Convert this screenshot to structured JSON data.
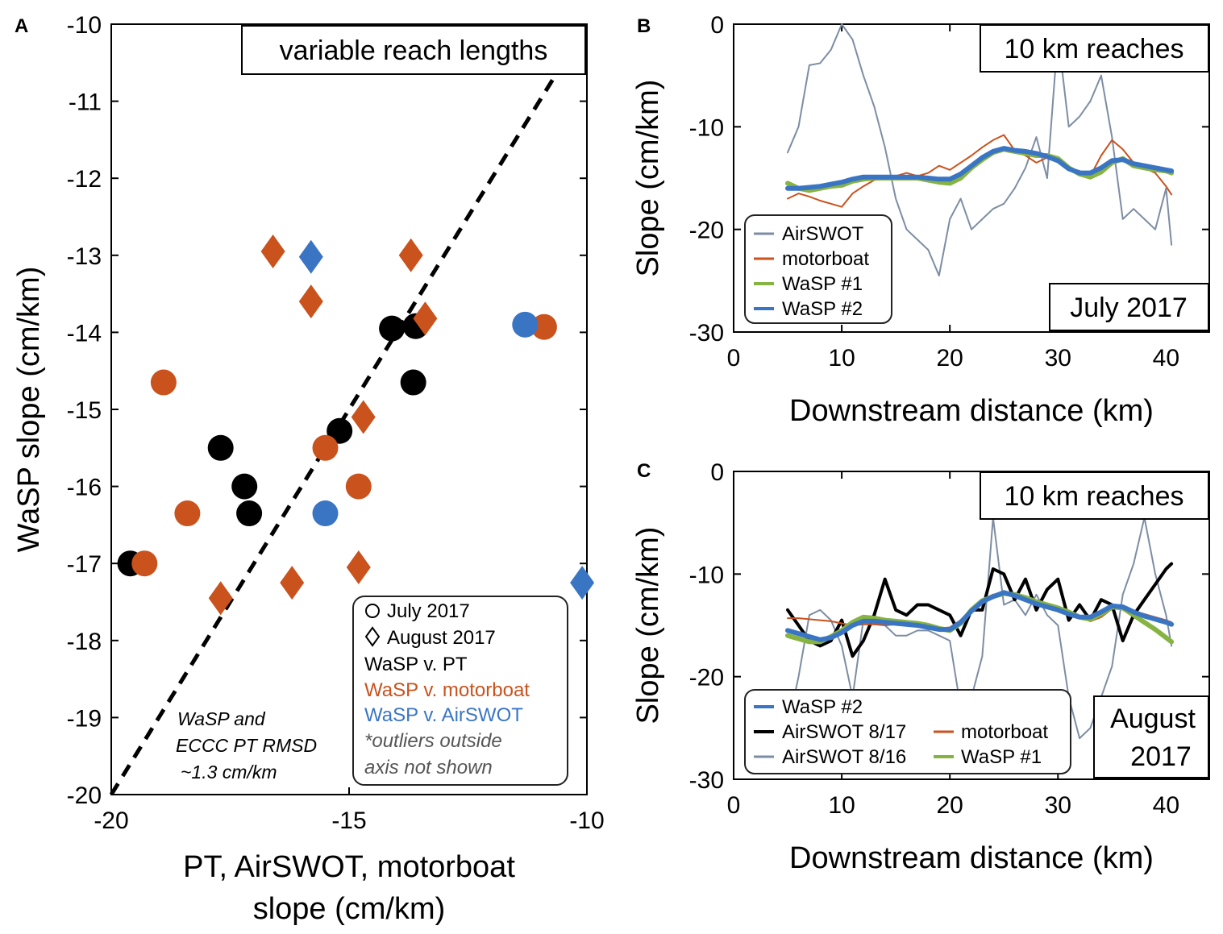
{
  "colors": {
    "black": "#000000",
    "orange": "#c9521d",
    "blue": "#3a75c4",
    "green": "#86b342",
    "grey": "#7d8da3"
  },
  "panel_a": {
    "label": "A",
    "title_box": "variable reach lengths",
    "xlabel_line1": "PT, AirSWOT, motorboat",
    "xlabel_line2": "slope (cm/km)",
    "ylabel": "WaSP slope (cm/km)",
    "xticks": [
      "-20",
      "-15",
      "-10"
    ],
    "yticks": [
      "-10",
      "-11",
      "-12",
      "-13",
      "-14",
      "-15",
      "-16",
      "-17",
      "-18",
      "-19",
      "-20"
    ],
    "note_line1": "WaSP and",
    "note_line2": "ECCC PT RMSD",
    "note_line3": "~1.3 cm/km",
    "legend": {
      "circle_label": "July 2017",
      "diamond_label": "August 2017",
      "pt_label": "WaSP v. PT",
      "motorboat_label": "WaSP v. motorboat",
      "airswot_label": "WaSP v. AirSWOT",
      "outlier_line1": "*outliers outside",
      "outlier_line2": "axis not shown"
    }
  },
  "panel_b": {
    "label": "B",
    "title_box": "10 km reaches",
    "date_box": "July 2017",
    "xlabel": "Downstream distance (km)",
    "ylabel": "Slope (cm/km)",
    "xticks": [
      "0",
      "10",
      "20",
      "30",
      "40"
    ],
    "yticks": [
      "0",
      "-10",
      "-20",
      "-30"
    ],
    "legend": [
      "AirSWOT",
      "motorboat",
      "WaSP #1",
      "WaSP #2"
    ]
  },
  "panel_c": {
    "label": "C",
    "title_box": "10 km reaches",
    "date_line1": "August",
    "date_line2": "2017",
    "xlabel": "Downstream distance (km)",
    "ylabel": "Slope (cm/km)",
    "xticks": [
      "0",
      "10",
      "20",
      "30",
      "40"
    ],
    "yticks": [
      "0",
      "-10",
      "-20",
      "-30"
    ],
    "legend": [
      "WaSP #2",
      "AirSWOT 8/17",
      "motorboat",
      "AirSWOT 8/16",
      "WaSP #1"
    ]
  },
  "chart_data": [
    {
      "type": "scatter",
      "panel": "A",
      "title": "variable reach lengths",
      "xlabel": "PT, AirSWOT, motorboat slope (cm/km)",
      "ylabel": "WaSP slope (cm/km)",
      "xlim": [
        -20,
        -10
      ],
      "ylim": [
        -20,
        -10
      ],
      "reference_line": "1:1 dashed",
      "series": [
        {
          "name": "WaSP v. PT (July 2017)",
          "marker": "circle",
          "color": "black",
          "points": [
            [
              -19.6,
              -17.0
            ],
            [
              -17.7,
              -15.5
            ],
            [
              -17.2,
              -16.0
            ],
            [
              -17.1,
              -16.35
            ],
            [
              -15.2,
              -15.28
            ],
            [
              -14.1,
              -13.95
            ],
            [
              -13.6,
              -13.92
            ],
            [
              -13.65,
              -14.65
            ]
          ]
        },
        {
          "name": "WaSP v. motorboat (July 2017)",
          "marker": "circle",
          "color": "orange",
          "points": [
            [
              -19.3,
              -17.0
            ],
            [
              -18.9,
              -14.65
            ],
            [
              -18.4,
              -16.35
            ],
            [
              -15.5,
              -15.5
            ],
            [
              -14.8,
              -16.0
            ],
            [
              -10.9,
              -13.93
            ]
          ]
        },
        {
          "name": "WaSP v. AirSWOT (July 2017)",
          "marker": "circle",
          "color": "blue",
          "points": [
            [
              -15.5,
              -16.35
            ],
            [
              -11.3,
              -13.9
            ]
          ]
        },
        {
          "name": "WaSP v. motorboat (August 2017)",
          "marker": "diamond",
          "color": "orange",
          "points": [
            [
              -16.6,
              -12.95
            ],
            [
              -15.8,
              -13.6
            ],
            [
              -13.7,
              -13.0
            ],
            [
              -13.4,
              -13.82
            ],
            [
              -14.7,
              -15.1
            ],
            [
              -14.8,
              -17.05
            ],
            [
              -16.2,
              -17.25
            ],
            [
              -17.7,
              -17.45
            ]
          ]
        },
        {
          "name": "WaSP v. AirSWOT (August 2017)",
          "marker": "diamond",
          "color": "blue",
          "points": [
            [
              -15.8,
              -13.02
            ],
            [
              -10.1,
              -17.25
            ]
          ]
        }
      ]
    },
    {
      "type": "line",
      "panel": "B",
      "title": "10 km reaches",
      "subtitle": "July 2017",
      "xlabel": "Downstream distance (km)",
      "ylabel": "Slope (cm/km)",
      "xlim": [
        0,
        44
      ],
      "ylim": [
        -30,
        0
      ],
      "series": [
        {
          "name": "AirSWOT",
          "color": "grey",
          "width": 2,
          "x": [
            5,
            6,
            7,
            8,
            9,
            10,
            11,
            12,
            13,
            14,
            15,
            16,
            17,
            18,
            19,
            20,
            21,
            22,
            23,
            24,
            25,
            26,
            27,
            28,
            29,
            30,
            31,
            32,
            33,
            34,
            35,
            36,
            37,
            38,
            39,
            40,
            40.5
          ],
          "y": [
            -12.5,
            -10,
            -4,
            -3.8,
            -2.5,
            0,
            -1.5,
            -5,
            -8,
            -12,
            -17,
            -20,
            -21,
            -22,
            -24.5,
            -19,
            -17,
            -20,
            -19,
            -18,
            -17.5,
            -16,
            -14,
            -11,
            -15,
            -1,
            -10,
            -9,
            -7.5,
            -5,
            -11,
            -19,
            -18,
            -19,
            -20,
            -16,
            -21.5
          ]
        },
        {
          "name": "motorboat",
          "color": "orange",
          "width": 2,
          "x": [
            5,
            6,
            7,
            8,
            9,
            10,
            11,
            12,
            13,
            14,
            15,
            16,
            17,
            18,
            19,
            20,
            21,
            22,
            23,
            24,
            25,
            26,
            27,
            28,
            29,
            30,
            31,
            32,
            33,
            34,
            35,
            36,
            37,
            38,
            39,
            40,
            40.5
          ],
          "y": [
            -17,
            -16.5,
            -16.8,
            -17.2,
            -17.5,
            -17.8,
            -16.5,
            -15.8,
            -15.2,
            -15,
            -14.8,
            -14.5,
            -14.8,
            -14.5,
            -13.8,
            -14.2,
            -13.5,
            -12.8,
            -12,
            -11.3,
            -10.8,
            -12.3,
            -12.8,
            -13.5,
            -13,
            -13.2,
            -14,
            -14.3,
            -14.8,
            -12.8,
            -11.3,
            -12.2,
            -13.5,
            -14,
            -14.5,
            -15.8,
            -16.6
          ]
        },
        {
          "name": "WaSP #1",
          "color": "green",
          "width": 6,
          "x": [
            5,
            6,
            7,
            8,
            9,
            10,
            11,
            12,
            13,
            14,
            15,
            16,
            17,
            18,
            19,
            20,
            21,
            22,
            23,
            24,
            25,
            26,
            27,
            28,
            29,
            30,
            31,
            32,
            33,
            34,
            35,
            36,
            37,
            38,
            39,
            40,
            40.5
          ],
          "y": [
            -15.5,
            -16,
            -16.2,
            -16,
            -15.8,
            -15.7,
            -15.3,
            -15.1,
            -15,
            -15,
            -15,
            -15,
            -15,
            -15.2,
            -15.4,
            -15.5,
            -15,
            -14,
            -13.2,
            -12.5,
            -12.2,
            -12.4,
            -12.6,
            -12.8,
            -12.8,
            -13.1,
            -14,
            -14.6,
            -14.9,
            -14.4,
            -13.5,
            -13.1,
            -13.8,
            -14,
            -14.2,
            -14.3,
            -14.5
          ]
        },
        {
          "name": "WaSP #2",
          "color": "blue",
          "width": 6,
          "x": [
            5,
            6,
            7,
            8,
            9,
            10,
            11,
            12,
            13,
            14,
            15,
            16,
            17,
            18,
            19,
            20,
            21,
            22,
            23,
            24,
            25,
            26,
            27,
            28,
            29,
            30,
            31,
            32,
            33,
            34,
            35,
            36,
            37,
            38,
            39,
            40,
            40.5
          ],
          "y": [
            -16,
            -16,
            -15.9,
            -15.8,
            -15.6,
            -15.4,
            -15.1,
            -14.9,
            -14.9,
            -14.9,
            -14.9,
            -14.9,
            -14.9,
            -15,
            -15.1,
            -15.1,
            -14.6,
            -13.8,
            -13,
            -12.4,
            -12.1,
            -12.3,
            -12.4,
            -12.6,
            -12.9,
            -13.3,
            -14.1,
            -14.5,
            -14.5,
            -14,
            -13.3,
            -13.2,
            -13.6,
            -13.8,
            -14,
            -14.2,
            -14.3
          ]
        }
      ]
    },
    {
      "type": "line",
      "panel": "C",
      "title": "10 km reaches",
      "subtitle": "August 2017",
      "xlabel": "Downstream distance (km)",
      "ylabel": "Slope (cm/km)",
      "xlim": [
        0,
        44
      ],
      "ylim": [
        -30,
        0
      ],
      "series": [
        {
          "name": "AirSWOT 8/16",
          "color": "grey",
          "width": 2,
          "x": [
            5,
            6,
            7,
            8,
            9,
            10,
            11,
            12,
            13,
            14,
            15,
            16,
            17,
            18,
            19,
            20,
            21,
            22,
            23,
            24,
            25,
            26,
            27,
            28,
            29,
            30,
            31,
            32,
            33,
            34,
            35,
            36,
            37,
            38,
            39,
            40,
            40.5
          ],
          "y": [
            -25,
            -20,
            -14,
            -13.5,
            -14.5,
            -17,
            -22,
            -14.5,
            -14,
            -15,
            -16,
            -16,
            -15.5,
            -15.5,
            -16,
            -16.5,
            -23,
            -22,
            -18,
            -4.5,
            -13,
            -12.5,
            -14,
            -12,
            -14,
            -15,
            -22,
            -26,
            -25,
            -22,
            -19,
            -12,
            -9,
            -4.5,
            -10,
            -14,
            -17
          ]
        },
        {
          "name": "AirSWOT 8/17",
          "color": "black",
          "width": 4,
          "x": [
            5,
            6,
            7,
            8,
            9,
            10,
            11,
            12,
            13,
            14,
            15,
            16,
            17,
            18,
            19,
            20,
            21,
            22,
            23,
            24,
            25,
            26,
            27,
            28,
            29,
            30,
            31,
            32,
            33,
            34,
            35,
            36,
            37,
            38,
            39,
            40,
            40.5
          ],
          "y": [
            -13.5,
            -15,
            -16.5,
            -17,
            -16.5,
            -14.5,
            -18,
            -16.5,
            -14,
            -10.5,
            -13.5,
            -14,
            -13,
            -13,
            -13.5,
            -14,
            -16,
            -13.5,
            -13.5,
            -9.5,
            -10,
            -12.5,
            -10.5,
            -13.5,
            -11.5,
            -10.5,
            -14.5,
            -13,
            -14.5,
            -12.5,
            -13,
            -16.5,
            -14,
            -12.5,
            -11,
            -9.5,
            -9
          ]
        },
        {
          "name": "motorboat",
          "color": "orange",
          "width": 2,
          "x": [
            5,
            6,
            7,
            8,
            9,
            10,
            11,
            12,
            13,
            14,
            15,
            16,
            17,
            18,
            19,
            20,
            21,
            22,
            23,
            24,
            25,
            26,
            27,
            28,
            29,
            30,
            31,
            32,
            33,
            34,
            35,
            36,
            37,
            38,
            39,
            40,
            40.5
          ],
          "y": [
            -14.3,
            -14.3,
            -14.4,
            -14.5,
            -14.6,
            -14.8,
            -15,
            -14.9,
            -14.9,
            -15,
            -14.9,
            -15,
            -14.9,
            -15.1,
            -15.3,
            -15.2,
            -14.5,
            -13.5,
            -12.5,
            -12,
            -11.9,
            -12.2,
            -12.4,
            -12.8,
            -13.1,
            -13.4,
            -13.6,
            -14.2,
            -14.6,
            -14.2,
            -13.4,
            -13.3,
            -13.6,
            -13.9,
            -14.2,
            -14.5,
            -14.7
          ]
        },
        {
          "name": "WaSP #1",
          "color": "green",
          "width": 6,
          "x": [
            5,
            6,
            7,
            8,
            9,
            10,
            11,
            12,
            13,
            14,
            15,
            16,
            17,
            18,
            19,
            20,
            21,
            22,
            23,
            24,
            25,
            26,
            27,
            28,
            29,
            30,
            31,
            32,
            33,
            34,
            35,
            36,
            37,
            38,
            39,
            40,
            40.5
          ],
          "y": [
            -16,
            -16.3,
            -16.6,
            -16.6,
            -16.1,
            -15.5,
            -14.7,
            -14.2,
            -14.3,
            -14.5,
            -14.6,
            -14.7,
            -14.8,
            -15,
            -15.3,
            -15.5,
            -14.8,
            -13.5,
            -12.6,
            -12.2,
            -11.9,
            -12,
            -12.3,
            -12.7,
            -13,
            -13.3,
            -13.7,
            -14.2,
            -14.4,
            -13.9,
            -13.2,
            -13.3,
            -14,
            -14.7,
            -15.4,
            -16.2,
            -16.6
          ]
        },
        {
          "name": "WaSP #2",
          "color": "blue",
          "width": 6,
          "x": [
            5,
            6,
            7,
            8,
            9,
            10,
            11,
            12,
            13,
            14,
            15,
            16,
            17,
            18,
            19,
            20,
            21,
            22,
            23,
            24,
            25,
            26,
            27,
            28,
            29,
            30,
            31,
            32,
            33,
            34,
            35,
            36,
            37,
            38,
            39,
            40,
            40.5
          ],
          "y": [
            -15.5,
            -15.8,
            -16.1,
            -16.4,
            -16.2,
            -15.7,
            -15,
            -14.6,
            -14.6,
            -14.7,
            -14.8,
            -14.9,
            -15,
            -15.2,
            -15.4,
            -15.4,
            -14.7,
            -13.6,
            -12.7,
            -12.2,
            -11.8,
            -12.1,
            -12.5,
            -12.9,
            -13.2,
            -13.5,
            -13.9,
            -14.2,
            -14.2,
            -13.7,
            -13.1,
            -13.2,
            -13.7,
            -14.1,
            -14.4,
            -14.7,
            -14.9
          ]
        }
      ]
    }
  ]
}
